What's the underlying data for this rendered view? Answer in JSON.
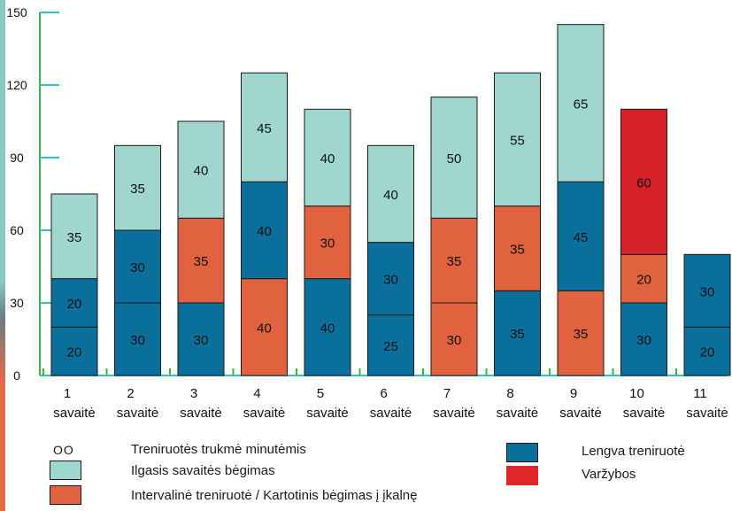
{
  "chart_data": {
    "type": "bar",
    "stacked": true,
    "ylim": [
      0,
      150
    ],
    "yticks": [
      "0",
      "30",
      "60",
      "90",
      "120",
      "150"
    ],
    "ytick_values": [
      0,
      30,
      60,
      90,
      120,
      150
    ],
    "categories": [
      [
        "1",
        "savaitė"
      ],
      [
        "2",
        "savaitė"
      ],
      [
        "3",
        "savaitė"
      ],
      [
        "4",
        "savaitė"
      ],
      [
        "5",
        "savaitė"
      ],
      [
        "6",
        "savaitė"
      ],
      [
        "7",
        "savaitė"
      ],
      [
        "8",
        "savaitė"
      ],
      [
        "9",
        "savaitė"
      ],
      [
        "10",
        "savaitė"
      ],
      [
        "11",
        "savaitė"
      ]
    ],
    "stacks": [
      [
        {
          "v": 20,
          "t": "easy"
        },
        {
          "v": 20,
          "t": "easy"
        },
        {
          "v": 35,
          "t": "long"
        }
      ],
      [
        {
          "v": 30,
          "t": "easy"
        },
        {
          "v": 30,
          "t": "easy"
        },
        {
          "v": 35,
          "t": "long"
        }
      ],
      [
        {
          "v": 30,
          "t": "easy"
        },
        {
          "v": 35,
          "t": "interval"
        },
        {
          "v": 40,
          "t": "long"
        }
      ],
      [
        {
          "v": 40,
          "t": "interval"
        },
        {
          "v": 40,
          "t": "easy"
        },
        {
          "v": 45,
          "t": "long"
        }
      ],
      [
        {
          "v": 40,
          "t": "easy"
        },
        {
          "v": 30,
          "t": "interval"
        },
        {
          "v": 40,
          "t": "long"
        }
      ],
      [
        {
          "v": 25,
          "t": "easy"
        },
        {
          "v": 30,
          "t": "easy"
        },
        {
          "v": 40,
          "t": "long"
        }
      ],
      [
        {
          "v": 30,
          "t": "interval"
        },
        {
          "v": 35,
          "t": "interval"
        },
        {
          "v": 50,
          "t": "long"
        }
      ],
      [
        {
          "v": 35,
          "t": "easy"
        },
        {
          "v": 35,
          "t": "interval"
        },
        {
          "v": 55,
          "t": "long"
        }
      ],
      [
        {
          "v": 35,
          "t": "interval"
        },
        {
          "v": 45,
          "t": "easy"
        },
        {
          "v": 65,
          "t": "long"
        }
      ],
      [
        {
          "v": 30,
          "t": "easy"
        },
        {
          "v": 20,
          "t": "interval"
        },
        {
          "v": 60,
          "t": "race"
        }
      ],
      [
        {
          "v": 20,
          "t": "easy"
        },
        {
          "v": 30,
          "t": "easy"
        }
      ]
    ],
    "colors": {
      "easy": "#0a6f9a",
      "interval": "#e0623f",
      "long": "#9fd6cd",
      "race": "#d72129",
      "axis": "#3cb44b",
      "tick": "#2ec4c4"
    },
    "grid": false
  },
  "legend": {
    "minutes_symbol": "OO",
    "minutes_label": "Treniruotės trukmė minutėmis",
    "long_label": "Ilgasis savaitės bėgimas",
    "interval_label": "Intervalinė treniruotė / Kartotinis bėgimas į įkalnę",
    "easy_label": "Lengva treniruotė",
    "race_label": "Varžybos"
  }
}
